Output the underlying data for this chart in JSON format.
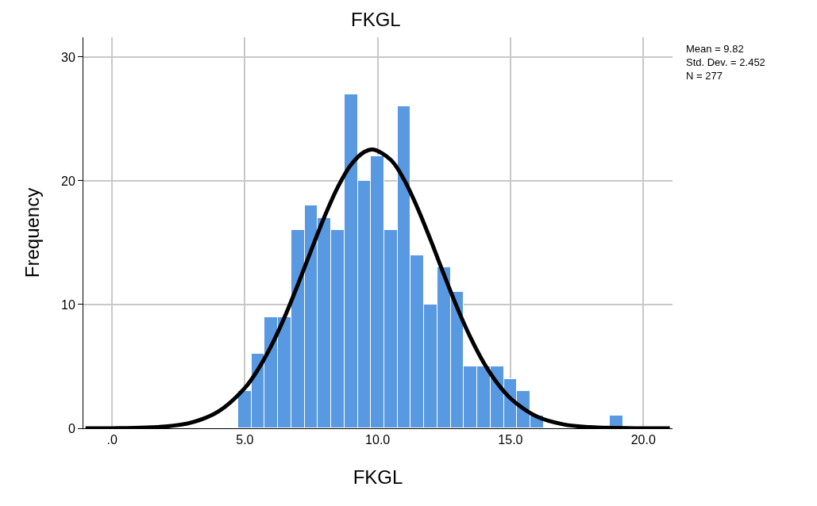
{
  "chart_data": {
    "type": "histogram",
    "title": "FKGL",
    "xlabel": "FKGL",
    "ylabel": "Frequency",
    "bins": [
      4.75,
      5.25,
      5.75,
      6.25,
      6.75,
      7.25,
      7.75,
      8.25,
      8.75,
      9.25,
      9.75,
      10.25,
      10.75,
      11.25,
      11.75,
      12.25,
      12.75,
      13.25,
      13.75,
      14.25,
      14.75,
      15.25,
      15.75,
      16.25,
      16.75,
      17.25,
      17.75,
      18.25,
      18.75,
      19.25
    ],
    "values": [
      3,
      6,
      9,
      9,
      16,
      18,
      17,
      16,
      27,
      20,
      22,
      16,
      26,
      14,
      10,
      13,
      11,
      5,
      5,
      5,
      4,
      3,
      1,
      0,
      0,
      0,
      0,
      0,
      1
    ],
    "color": "#5899e2",
    "series": [
      {
        "type": "line",
        "color": "#000000",
        "x": [
          -1,
          0,
          2,
          3,
          4,
          5,
          5.5,
          6,
          6.5,
          7,
          7.5,
          8,
          8.5,
          9,
          9.5,
          9.82,
          10.5,
          11,
          11.5,
          12,
          12.5,
          13,
          13.5,
          14,
          14.5,
          15,
          16,
          17,
          18,
          20,
          21
        ],
        "values": [
          0,
          0,
          0.14,
          0.47,
          1.35,
          3.26,
          4.77,
          6.69,
          9.01,
          11.63,
          14.4,
          17.11,
          19.49,
          21.31,
          22.34,
          22.53,
          21.68,
          20.07,
          17.81,
          15.18,
          12.4,
          9.72,
          7.31,
          5.27,
          3.65,
          2.42,
          0.94,
          0.31,
          0.09,
          0,
          0
        ]
      }
    ],
    "xlim": [
      -1.08,
      21.1
    ],
    "xticks": [
      {
        "value": 0,
        "label": ".0"
      },
      {
        "value": 5,
        "label": "5.0"
      },
      {
        "value": 10,
        "label": "10.0"
      },
      {
        "value": 15,
        "label": "15.0"
      },
      {
        "value": 20,
        "label": "20.0"
      }
    ],
    "ylim": [
      0,
      31.6
    ],
    "yticks": [
      0,
      10,
      20,
      30
    ],
    "grid": true,
    "annotations": [
      "Mean = 9.82",
      "Std. Dev. = 2.452",
      "N = 277"
    ]
  }
}
